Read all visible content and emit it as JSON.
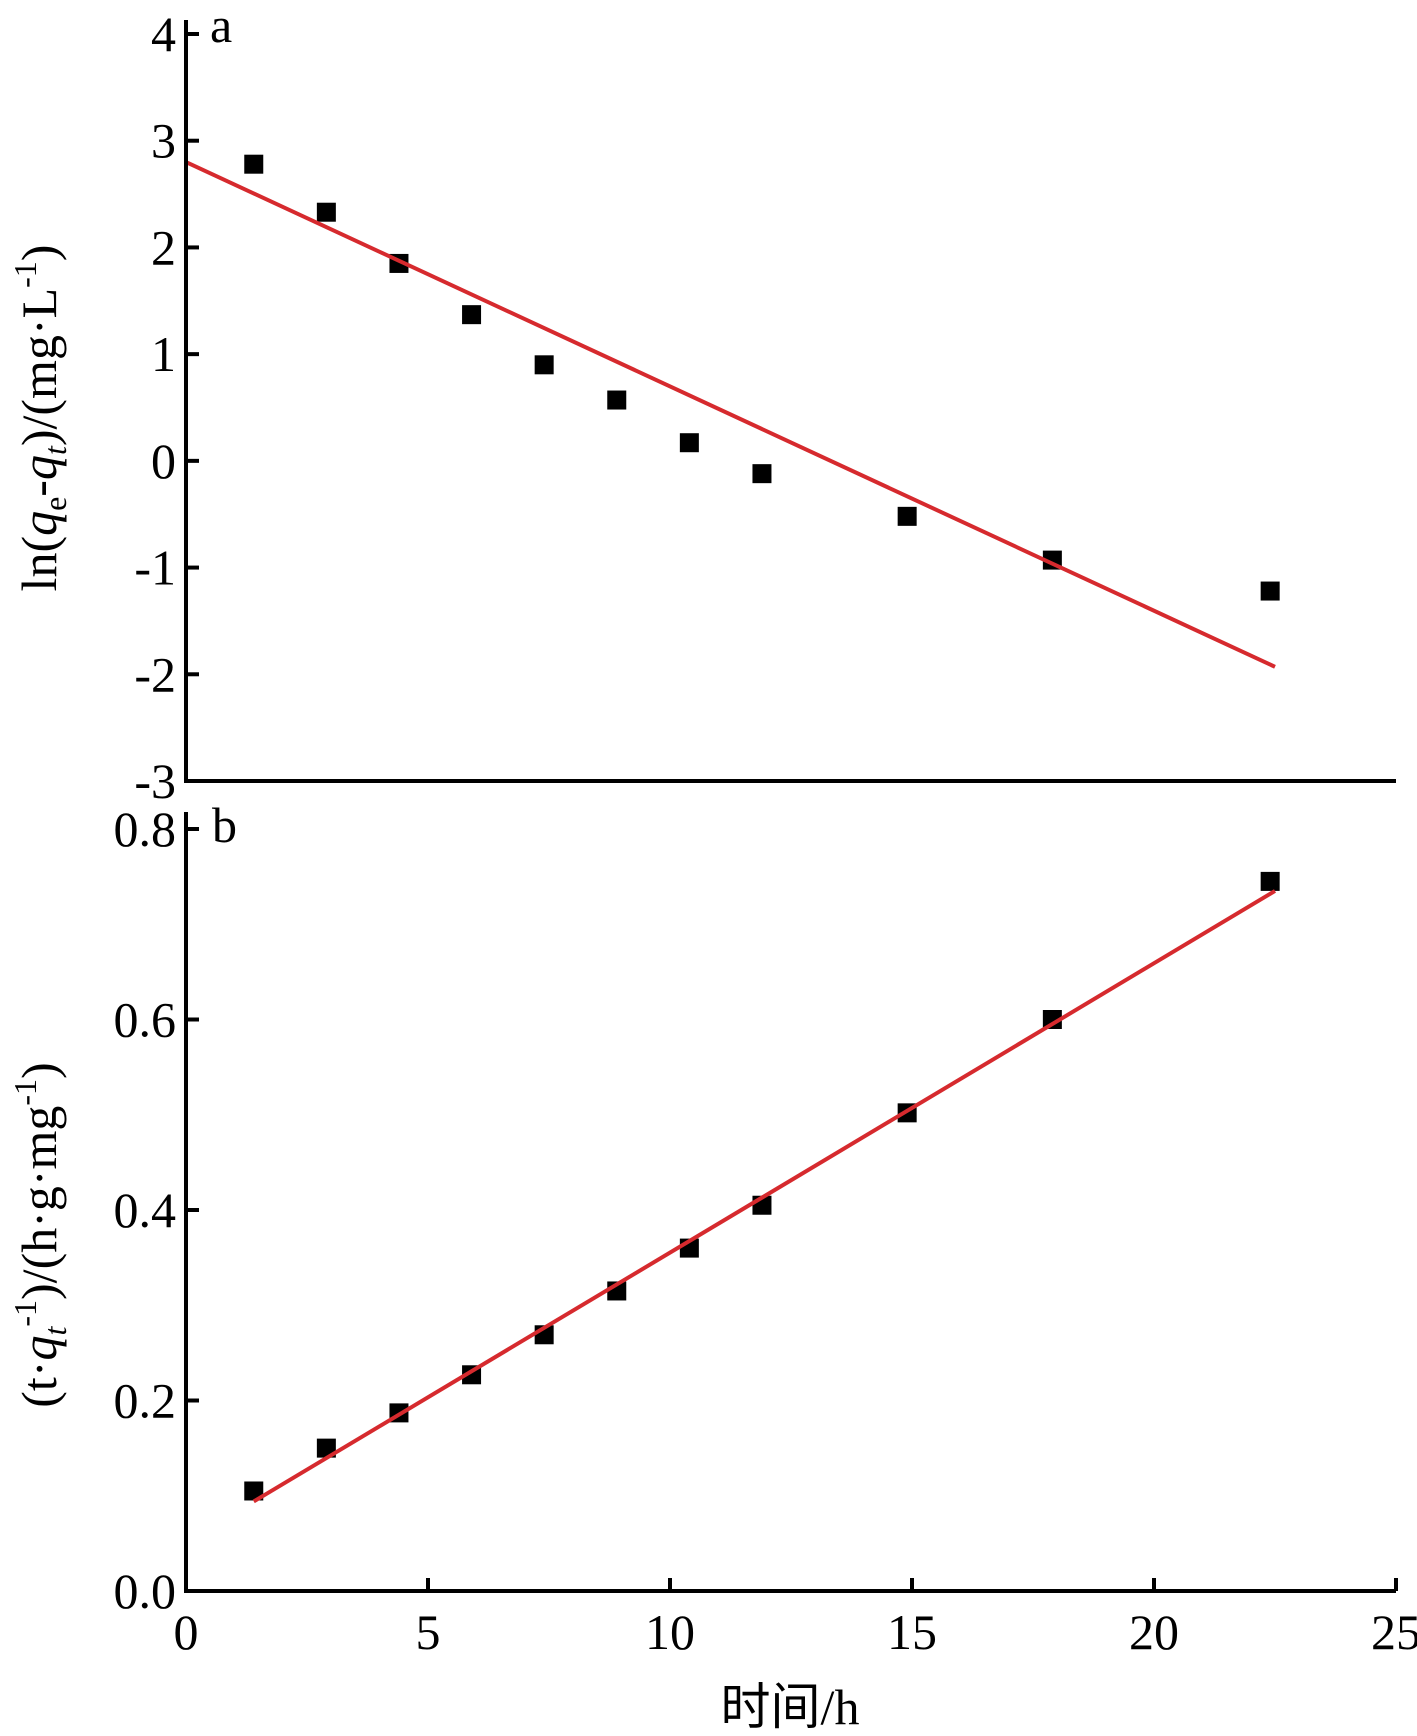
{
  "colors": {
    "fit_line": "#d62a2e",
    "marker": "#000000",
    "axis": "#000000"
  },
  "chart_data": [
    {
      "panel": "a",
      "type": "scatter",
      "marker": "square",
      "ylabel": "ln(qe-qt)/(mg·L-1)",
      "ylabel_parts": [
        "ln(",
        "q",
        "e",
        "-",
        "q",
        "t",
        ")/(mg·L",
        "-1",
        ")"
      ],
      "ylim": [
        -3,
        4
      ],
      "yticks": [
        -3,
        -2,
        -1,
        0,
        1,
        2,
        3,
        4
      ],
      "ytick_labels": [
        "-3",
        "-2",
        "-1",
        "0",
        "1",
        "2",
        "3",
        "4"
      ],
      "xlim": [
        0,
        25
      ],
      "grid": false,
      "series": [
        {
          "x": [
            1.4,
            2.9,
            4.4,
            5.9,
            7.4,
            8.9,
            10.4,
            11.9,
            14.9,
            17.9,
            22.4
          ],
          "y": [
            2.78,
            2.33,
            1.85,
            1.37,
            0.9,
            0.57,
            0.17,
            -0.12,
            -0.52,
            -0.93,
            -1.22
          ]
        }
      ],
      "fit": {
        "x": [
          0,
          22.5
        ],
        "y": [
          2.8,
          -1.93
        ]
      }
    },
    {
      "panel": "b",
      "type": "scatter",
      "marker": "square",
      "xlabel": "时间/h",
      "ylabel": "(t·qt-1)/(h·g·mg-1)",
      "ylabel_parts": [
        "(t·",
        "q",
        "t",
        "-1",
        ")/(h·g·mg",
        "-1",
        ")"
      ],
      "ylim": [
        0,
        0.8
      ],
      "yticks": [
        0,
        0.2,
        0.4,
        0.6,
        0.8
      ],
      "ytick_labels": [
        "0.0",
        "0.2",
        "0.4",
        "0.6",
        "0.8"
      ],
      "xlim": [
        0,
        25
      ],
      "xticks": [
        0,
        5,
        10,
        15,
        20,
        25
      ],
      "xtick_labels": [
        "0",
        "5",
        "10",
        "15",
        "20",
        "25"
      ],
      "grid": false,
      "series": [
        {
          "x": [
            1.4,
            2.9,
            4.4,
            5.9,
            7.4,
            8.9,
            10.4,
            11.9,
            14.9,
            17.9,
            22.4
          ],
          "y": [
            0.105,
            0.15,
            0.187,
            0.227,
            0.269,
            0.315,
            0.36,
            0.405,
            0.502,
            0.6,
            0.745
          ]
        }
      ],
      "fit": {
        "x": [
          1.4,
          22.5
        ],
        "y": [
          0.094,
          0.735
        ]
      }
    }
  ]
}
